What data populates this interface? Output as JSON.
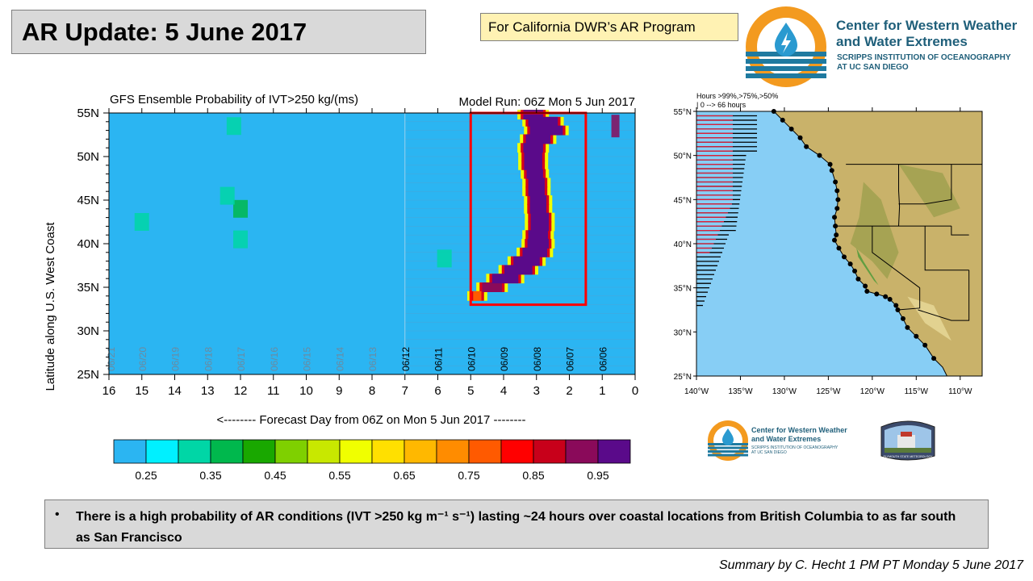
{
  "header": {
    "title": "AR Update: 5 June 2017",
    "program": "For California DWR’s AR Program",
    "org_name_line1": "Center for Western Weather",
    "org_name_line2": "and Water Extremes",
    "org_sub_line1": "SCRIPPS INSTITUTION OF OCEANOGRAPHY",
    "org_sub_line2": "AT UC SAN DIEGO"
  },
  "chart_data": [
    {
      "type": "heatmap",
      "title": "GFS Ensemble Probability of IVT>250 kg/(ms)",
      "subtitle": "Model Run: 06Z Mon 5 Jun 2017",
      "xlabel": "<-------- Forecast Day from 06Z on Mon 5 Jun 2017 --------",
      "ylabel": "Latitude along U.S. West Coast",
      "xlim": [
        16,
        0
      ],
      "ylim": [
        25,
        55
      ],
      "x_ticks": [
        "16",
        "15",
        "14",
        "13",
        "12",
        "11",
        "10",
        "9",
        "8",
        "7",
        "6",
        "5",
        "4",
        "3",
        "2",
        "1",
        "0"
      ],
      "y_ticks": [
        "25N",
        "30N",
        "35N",
        "40N",
        "45N",
        "50N",
        "55N"
      ],
      "date_labels": [
        {
          "label": "06/21",
          "day": 15.95
        },
        {
          "label": "06/20",
          "day": 15.0
        },
        {
          "label": "06/19",
          "day": 14.0
        },
        {
          "label": "06/18",
          "day": 13.0
        },
        {
          "label": "06/17",
          "day": 12.0
        },
        {
          "label": "06/16",
          "day": 11.0
        },
        {
          "label": "06/15",
          "day": 10.0
        },
        {
          "label": "06/14",
          "day": 9.0
        },
        {
          "label": "06/13",
          "day": 8.0
        },
        {
          "label": "06/12",
          "day": 7.0
        },
        {
          "label": "06/11",
          "day": 6.0
        },
        {
          "label": "06/10",
          "day": 5.0
        },
        {
          "label": "06/09",
          "day": 4.0
        },
        {
          "label": "06/08",
          "day": 3.0
        },
        {
          "label": "06/07",
          "day": 2.0
        },
        {
          "label": "06/06",
          "day": 1.0
        }
      ],
      "highlight_box": {
        "day_from": 5.0,
        "day_to": 1.5,
        "lat_from": 33.0,
        "lat_to": 55.0,
        "color": "#ff0000"
      },
      "ar_band": [
        {
          "lat": 34.0,
          "day": 4.8,
          "width": 0.25,
          "prob": 0.75
        },
        {
          "lat": 35.0,
          "day": 4.35,
          "width": 0.6,
          "prob": 0.9
        },
        {
          "lat": 36.0,
          "day": 3.95,
          "width": 0.8,
          "prob": 0.95
        },
        {
          "lat": 37.0,
          "day": 3.55,
          "width": 0.85,
          "prob": 0.95
        },
        {
          "lat": 38.0,
          "day": 3.3,
          "width": 0.8,
          "prob": 0.95
        },
        {
          "lat": 39.0,
          "day": 3.05,
          "width": 0.75,
          "prob": 0.95
        },
        {
          "lat": 40.0,
          "day": 2.95,
          "width": 0.65,
          "prob": 0.95
        },
        {
          "lat": 41.0,
          "day": 2.95,
          "width": 0.6,
          "prob": 0.95
        },
        {
          "lat": 42.0,
          "day": 2.9,
          "width": 0.55,
          "prob": 0.95
        },
        {
          "lat": 43.0,
          "day": 2.9,
          "width": 0.55,
          "prob": 0.95
        },
        {
          "lat": 44.0,
          "day": 2.95,
          "width": 0.5,
          "prob": 0.95
        },
        {
          "lat": 45.0,
          "day": 2.95,
          "width": 0.5,
          "prob": 0.95
        },
        {
          "lat": 46.0,
          "day": 3.0,
          "width": 0.5,
          "prob": 0.95
        },
        {
          "lat": 47.0,
          "day": 3.0,
          "width": 0.5,
          "prob": 0.95
        },
        {
          "lat": 48.0,
          "day": 3.05,
          "width": 0.5,
          "prob": 0.95
        },
        {
          "lat": 49.0,
          "day": 3.1,
          "width": 0.55,
          "prob": 0.95
        },
        {
          "lat": 50.0,
          "day": 3.1,
          "width": 0.55,
          "prob": 0.95
        },
        {
          "lat": 51.0,
          "day": 3.1,
          "width": 0.6,
          "prob": 0.95
        },
        {
          "lat": 52.0,
          "day": 2.95,
          "width": 0.75,
          "prob": 0.95
        },
        {
          "lat": 53.0,
          "day": 2.7,
          "width": 1.0,
          "prob": 0.95
        },
        {
          "lat": 54.0,
          "day": 2.8,
          "width": 0.9,
          "prob": 0.95
        },
        {
          "lat": 54.8,
          "day": 3.1,
          "width": 0.6,
          "prob": 0.95
        }
      ],
      "patches": [
        {
          "day": 12.0,
          "lat": 44.0,
          "prob": 0.35
        },
        {
          "day": 12.4,
          "lat": 45.5,
          "prob": 0.3
        },
        {
          "day": 12.2,
          "lat": 53.5,
          "prob": 0.3
        },
        {
          "day": 12.0,
          "lat": 40.5,
          "prob": 0.3
        },
        {
          "day": 15.0,
          "lat": 42.5,
          "prob": 0.3
        },
        {
          "day": 5.8,
          "lat": 38.3,
          "prob": 0.3
        },
        {
          "day": 0.6,
          "lat": 53.5,
          "prob": 0.9
        }
      ]
    },
    {
      "type": "heatmap",
      "title": "Probability colorbar",
      "categories": [
        "0.25",
        "0.35",
        "0.45",
        "0.55",
        "0.65",
        "0.75",
        "0.85",
        "0.95"
      ],
      "colors": [
        "#2bb5f2",
        "#00f0ff",
        "#00d6a6",
        "#00b84d",
        "#19a800",
        "#7fd000",
        "#c8e800",
        "#f0ff00",
        "#ffe000",
        "#ffb800",
        "#ff8c00",
        "#ff5a00",
        "#ff0000",
        "#c8001a",
        "#8a0a5a",
        "#5a0a8a"
      ]
    },
    {
      "type": "scatter",
      "title": "Hours >99%,>75%,>50%",
      "subtitle": "| 0 --> 66 hours",
      "x_ticks": [
        "140°W",
        "135°W",
        "130°W",
        "125°W",
        "120°W",
        "115°W",
        "110°W"
      ],
      "y_ticks": [
        "25°N",
        "30°N",
        "35°N",
        "40°N",
        "45°N",
        "50°N",
        "55°N"
      ],
      "xlim": [
        -140,
        -107.5
      ],
      "ylim": [
        25,
        55
      ]
    }
  ],
  "summary_box": {
    "bullet": "•",
    "text": "There is a high probability of AR conditions (IVT >250 kg m⁻¹ s⁻¹) lasting ~24 hours over coastal locations from British Columbia to as far south as San Francisco"
  },
  "footer": {
    "summary": "Summary by C. Hecht 1 PM PT Monday 5 June 2017",
    "small_logo_name_line1": "Center for Western Weather",
    "small_logo_name_line2": "and Water Extremes",
    "small_logo_sub_line1": "SCRIPPS INSTITUTION OF OCEANOGRAPHY",
    "small_logo_sub_line2": "AT UC SAN DIEGO",
    "psu_label": "PLYMOUTH STATE METEOROLOGY"
  },
  "colors": {
    "background_field": "#2bb5f2",
    "ocean": "#87cef5",
    "highlight": "#ff0000",
    "logo_blue": "#1f5f7a",
    "logo_orange": "#f39a1f"
  }
}
